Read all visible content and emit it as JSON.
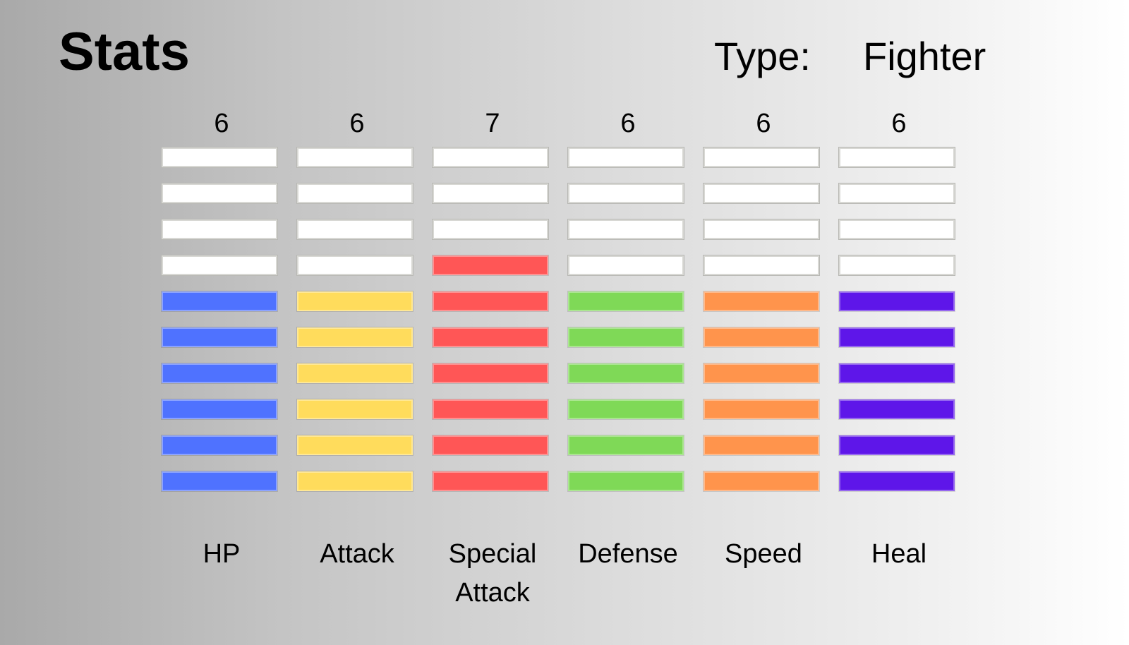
{
  "title": "Stats",
  "type_label": "Type:",
  "type_value": "Fighter",
  "max_bars": 10,
  "empty_color": "#ffffff",
  "stats": [
    {
      "label": "HP",
      "value": 6,
      "color": "#4f72ff"
    },
    {
      "label": "Attack",
      "value": 6,
      "color": "#ffdc5c"
    },
    {
      "label": "Special Attack",
      "value": 7,
      "color": "#ff5656"
    },
    {
      "label": "Defense",
      "value": 6,
      "color": "#7fd957"
    },
    {
      "label": "Speed",
      "value": 6,
      "color": "#ff944c"
    },
    {
      "label": "Heal",
      "value": 6,
      "color": "#5e16e9"
    }
  ]
}
